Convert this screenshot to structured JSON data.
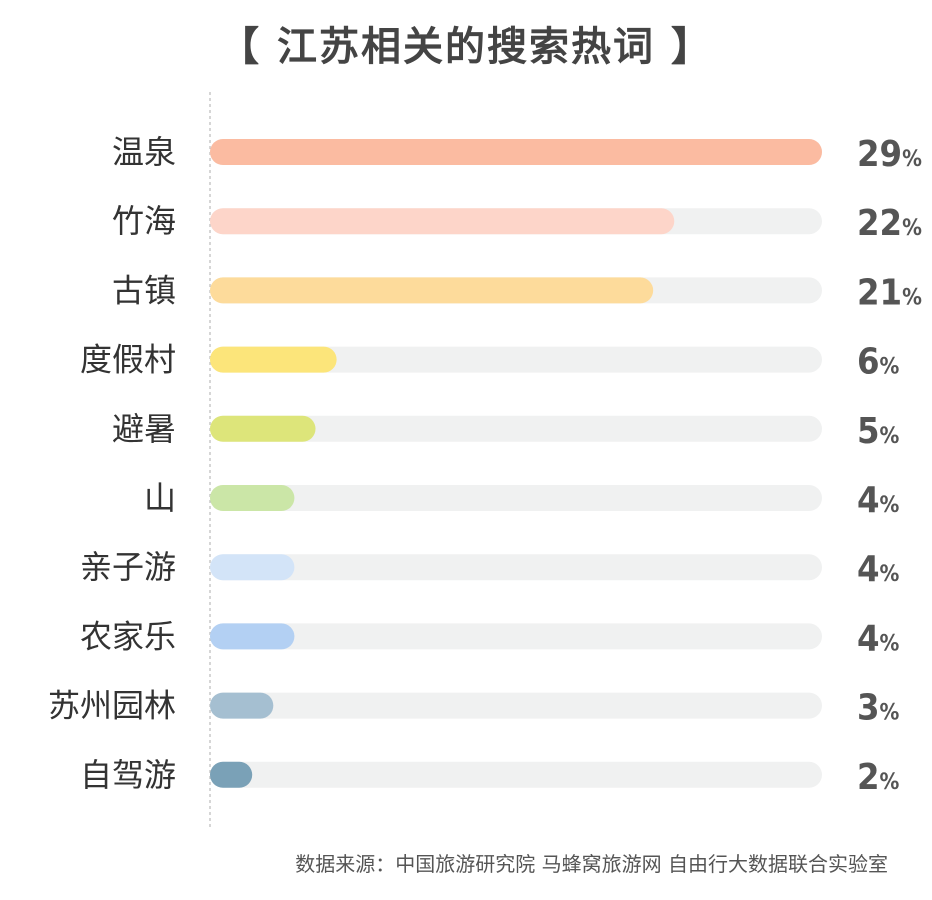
{
  "page": {
    "title": "【 江苏相关的搜索热词 】",
    "source": "数据来源：中国旅游研究院 马蜂窝旅游网 自由行大数据联合实验室"
  },
  "chart_data": {
    "type": "bar",
    "orientation": "horizontal",
    "title": "【 江苏相关的搜索热词 】",
    "xlabel": "",
    "ylabel": "",
    "unit": "%",
    "xlim": [
      0,
      29
    ],
    "grid": false,
    "legend": "none",
    "categories": [
      "温泉",
      "竹海",
      "古镇",
      "度假村",
      "避暑",
      "山",
      "亲子游",
      "农家乐",
      "苏州园林",
      "自驾游"
    ],
    "values": [
      29,
      22,
      21,
      6,
      5,
      4,
      4,
      4,
      3,
      2
    ],
    "value_labels": [
      "29%",
      "22%",
      "21%",
      "6%",
      "5%",
      "4%",
      "4%",
      "4%",
      "3%",
      "2%"
    ],
    "colors": [
      "#FBBBA1",
      "#FDD5C9",
      "#FDDB9B",
      "#FCE57A",
      "#DDE57A",
      "#CBE6A7",
      "#D3E4F8",
      "#B3D0F3",
      "#A5BFD1",
      "#7AA1B7"
    ],
    "track_color": "#F0F1F1",
    "axis_color": "#BBBBBB"
  }
}
